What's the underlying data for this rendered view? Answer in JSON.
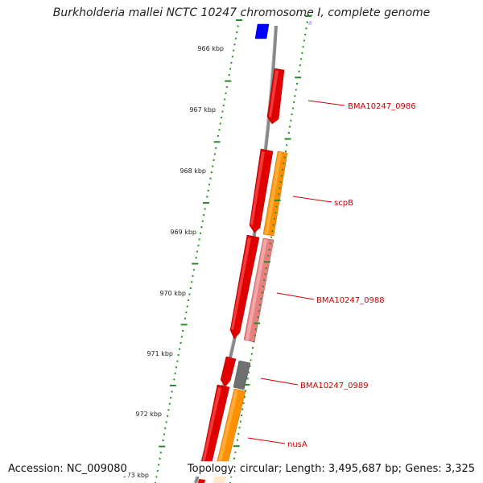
{
  "header": {
    "title": "Burkholderia mallei NCTC 10247 chromosome I, complete genome"
  },
  "footer": {
    "accession": "Accession: NC_009080",
    "summary": "Topology: circular; Length: 3,495,687 bp; Genes: 3,325"
  },
  "ruler": [
    "966 kbp",
    "967 kbp",
    "968 kbp",
    "969 kbp",
    "970 kbp",
    "971 kbp",
    "972 kbp",
    "973 kbp"
  ],
  "gene_labels": [
    "BMA10247_0986",
    "scpB",
    "BMA10247_0988",
    "BMA10247_0989",
    "nusA"
  ],
  "colors": {
    "backbone": "#808080",
    "tick_major": "#2a8a2a",
    "tick_minor": "#2a8a2a",
    "gene_red": "#e00000",
    "gene_orange": "#ff9000",
    "gene_pink": "#e88080",
    "gene_gray": "#707070",
    "gene_blue": "#0000ff",
    "gene_cream": "#fde9cc",
    "label": "#cc0000"
  }
}
